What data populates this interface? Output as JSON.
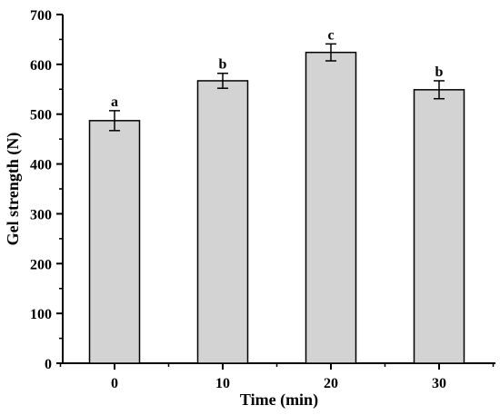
{
  "chart_data": {
    "type": "bar",
    "title": "",
    "xlabel": "Time (min)",
    "ylabel": "Gel strength (N)",
    "categories": [
      "0",
      "10",
      "20",
      "30"
    ],
    "values": [
      487,
      567,
      624,
      549
    ],
    "errors": [
      20,
      15,
      17,
      18
    ],
    "significance": [
      "a",
      "b",
      "c",
      "b"
    ],
    "ylim": [
      0,
      700
    ],
    "yticks": [
      "0",
      "100",
      "200",
      "300",
      "400",
      "500",
      "600",
      "700"
    ],
    "grid": false,
    "bar_color": "#d3d3d3",
    "edge_color": "#000000"
  }
}
